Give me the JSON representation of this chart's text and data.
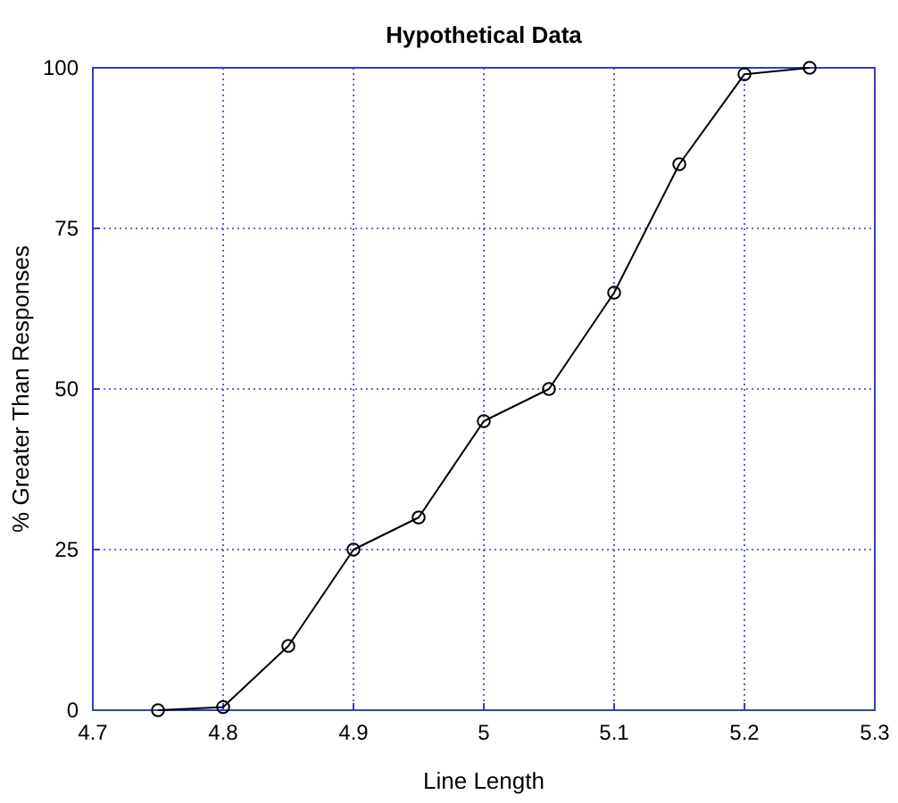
{
  "chart_data": {
    "type": "line",
    "title": "Hypothetical Data",
    "xlabel": "Line Length",
    "ylabel": "% Greater Than Responses",
    "x": [
      4.75,
      4.8,
      4.85,
      4.9,
      4.95,
      5,
      5.05,
      5.1,
      5.15,
      5.2,
      5.25
    ],
    "series": [
      {
        "color": "#000000",
        "values": [
          0,
          0.5,
          10,
          25,
          30,
          45,
          50,
          65,
          85,
          99,
          100
        ]
      }
    ],
    "xlim": [
      4.7,
      5.3
    ],
    "xticks": [
      4.7,
      4.8,
      4.9,
      5,
      5.1,
      5.2,
      5.3
    ],
    "ylim": [
      0,
      100
    ],
    "yticks": [
      0,
      25,
      50,
      75,
      100
    ],
    "grid": true,
    "marker": "circle",
    "line_style": "solid"
  }
}
